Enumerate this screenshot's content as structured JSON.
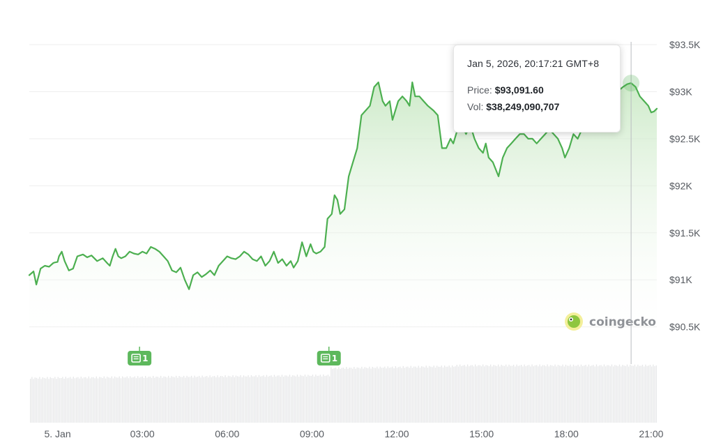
{
  "chart_data": {
    "type": "area",
    "watermark": "coingecko",
    "y_axis": {
      "position": "right",
      "ticks": [
        {
          "value": 90500,
          "label": "$90.5K"
        },
        {
          "value": 91000,
          "label": "$91K"
        },
        {
          "value": 91500,
          "label": "$91.5K"
        },
        {
          "value": 92000,
          "label": "$92K"
        },
        {
          "value": 92500,
          "label": "$92.5K"
        },
        {
          "value": 93000,
          "label": "$93K"
        },
        {
          "value": 93500,
          "label": "$93.5K"
        }
      ],
      "range": [
        90290,
        93530
      ]
    },
    "x_axis": {
      "range_hours": [
        -1.0,
        21.2
      ],
      "ticks": [
        {
          "hour": 0,
          "label": "5. Jan"
        },
        {
          "hour": 3,
          "label": "03:00"
        },
        {
          "hour": 6,
          "label": "06:00"
        },
        {
          "hour": 9,
          "label": "09:00"
        },
        {
          "hour": 12,
          "label": "12:00"
        },
        {
          "hour": 15,
          "label": "15:00"
        },
        {
          "hour": 18,
          "label": "18:00"
        },
        {
          "hour": 21,
          "label": "21:00"
        }
      ]
    },
    "grid": true,
    "series": [
      {
        "points": [
          [
            -1.0,
            91050
          ],
          [
            -0.85,
            91090
          ],
          [
            -0.75,
            90950
          ],
          [
            -0.6,
            91120
          ],
          [
            -0.45,
            91150
          ],
          [
            -0.3,
            91140
          ],
          [
            -0.15,
            91180
          ],
          [
            0.0,
            91190
          ],
          [
            -0.1,
            91185
          ],
          [
            0.05,
            91250
          ],
          [
            0.15,
            91300
          ],
          [
            0.25,
            91200
          ],
          [
            0.4,
            91100
          ],
          [
            0.55,
            91120
          ],
          [
            0.7,
            91250
          ],
          [
            0.9,
            91270
          ],
          [
            1.05,
            91240
          ],
          [
            1.2,
            91260
          ],
          [
            1.4,
            91200
          ],
          [
            1.6,
            91230
          ],
          [
            1.75,
            91180
          ],
          [
            1.85,
            91150
          ],
          [
            1.95,
            91250
          ],
          [
            2.05,
            91330
          ],
          [
            2.15,
            91250
          ],
          [
            2.25,
            91230
          ],
          [
            2.4,
            91250
          ],
          [
            2.55,
            91300
          ],
          [
            2.7,
            91280
          ],
          [
            2.85,
            91270
          ],
          [
            3.0,
            91300
          ],
          [
            3.15,
            91280
          ],
          [
            3.3,
            91350
          ],
          [
            3.45,
            91330
          ],
          [
            3.6,
            91300
          ],
          [
            3.75,
            91250
          ],
          [
            3.9,
            91200
          ],
          [
            4.05,
            91100
          ],
          [
            4.2,
            91080
          ],
          [
            4.35,
            91130
          ],
          [
            4.5,
            91000
          ],
          [
            4.65,
            90900
          ],
          [
            4.8,
            91050
          ],
          [
            4.95,
            91080
          ],
          [
            5.1,
            91030
          ],
          [
            5.25,
            91060
          ],
          [
            5.4,
            91100
          ],
          [
            5.55,
            91050
          ],
          [
            5.7,
            91150
          ],
          [
            5.85,
            91200
          ],
          [
            6.0,
            91250
          ],
          [
            6.15,
            91230
          ],
          [
            6.3,
            91220
          ],
          [
            6.45,
            91250
          ],
          [
            6.6,
            91300
          ],
          [
            6.75,
            91270
          ],
          [
            6.9,
            91220
          ],
          [
            7.05,
            91200
          ],
          [
            7.2,
            91250
          ],
          [
            7.35,
            91150
          ],
          [
            7.5,
            91200
          ],
          [
            7.65,
            91300
          ],
          [
            7.8,
            91180
          ],
          [
            7.95,
            91220
          ],
          [
            8.1,
            91150
          ],
          [
            8.25,
            91200
          ],
          [
            8.35,
            91130
          ],
          [
            8.5,
            91200
          ],
          [
            8.65,
            91400
          ],
          [
            8.8,
            91250
          ],
          [
            8.95,
            91380
          ],
          [
            9.05,
            91300
          ],
          [
            9.15,
            91280
          ],
          [
            9.3,
            91300
          ],
          [
            9.45,
            91350
          ],
          [
            9.55,
            91650
          ],
          [
            9.7,
            91700
          ],
          [
            9.8,
            91900
          ],
          [
            9.9,
            91850
          ],
          [
            10.0,
            91700
          ],
          [
            10.15,
            91750
          ],
          [
            10.3,
            92100
          ],
          [
            10.45,
            92250
          ],
          [
            10.6,
            92400
          ],
          [
            10.75,
            92750
          ],
          [
            10.9,
            92800
          ],
          [
            11.05,
            92850
          ],
          [
            11.2,
            93050
          ],
          [
            11.35,
            93100
          ],
          [
            11.5,
            92900
          ],
          [
            11.6,
            92850
          ],
          [
            11.75,
            92900
          ],
          [
            11.85,
            92700
          ],
          [
            11.95,
            92800
          ],
          [
            12.05,
            92900
          ],
          [
            12.2,
            92950
          ],
          [
            12.35,
            92900
          ],
          [
            12.45,
            92850
          ],
          [
            12.55,
            93100
          ],
          [
            12.65,
            92950
          ],
          [
            12.8,
            92950
          ],
          [
            12.95,
            92900
          ],
          [
            13.1,
            92850
          ],
          [
            13.3,
            92800
          ],
          [
            13.45,
            92750
          ],
          [
            13.6,
            92400
          ],
          [
            13.75,
            92400
          ],
          [
            13.9,
            92500
          ],
          [
            14.0,
            92450
          ],
          [
            14.15,
            92600
          ],
          [
            14.3,
            92650
          ],
          [
            14.45,
            92550
          ],
          [
            14.6,
            92650
          ],
          [
            14.75,
            92500
          ],
          [
            14.9,
            92400
          ],
          [
            15.05,
            92350
          ],
          [
            15.15,
            92450
          ],
          [
            15.25,
            92300
          ],
          [
            15.4,
            92250
          ],
          [
            15.6,
            92100
          ],
          [
            15.75,
            92300
          ],
          [
            15.9,
            92400
          ],
          [
            16.05,
            92450
          ],
          [
            16.2,
            92500
          ],
          [
            16.35,
            92550
          ],
          [
            16.5,
            92550
          ],
          [
            16.65,
            92500
          ],
          [
            16.8,
            92500
          ],
          [
            16.95,
            92450
          ],
          [
            17.1,
            92500
          ],
          [
            17.25,
            92550
          ],
          [
            17.4,
            92600
          ],
          [
            17.55,
            92550
          ],
          [
            17.7,
            92500
          ],
          [
            17.85,
            92400
          ],
          [
            17.95,
            92300
          ],
          [
            18.1,
            92400
          ],
          [
            18.25,
            92550
          ],
          [
            18.4,
            92500
          ],
          [
            18.55,
            92600
          ],
          [
            18.7,
            92650
          ],
          [
            18.85,
            92750
          ],
          [
            19.0,
            92780
          ],
          [
            19.2,
            92850
          ],
          [
            19.4,
            92900
          ],
          [
            19.6,
            92950
          ],
          [
            19.8,
            93000
          ],
          [
            20.0,
            93050
          ],
          [
            20.15,
            93080
          ],
          [
            20.29,
            93091.6
          ],
          [
            20.45,
            93050
          ],
          [
            20.6,
            92950
          ],
          [
            20.75,
            92900
          ],
          [
            20.9,
            92850
          ],
          [
            21.0,
            92780
          ],
          [
            21.1,
            92790
          ],
          [
            21.2,
            92820
          ]
        ]
      }
    ],
    "volume_bars": true,
    "news_markers": [
      {
        "hour": 2.9,
        "label": "1"
      },
      {
        "hour": 9.6,
        "label": "1"
      }
    ],
    "tooltip": {
      "hour": 20.29,
      "price_value": 93091.6,
      "date": "Jan 5, 2026, 20:17:21 GMT+8",
      "price_label": "Price:",
      "price": "$93,091.60",
      "vol_label": "Vol:",
      "vol": "$38,249,090,707"
    },
    "colors": {
      "line": "#4caf50",
      "area_top": "#c8e8c3",
      "volume": "#e6e7e8",
      "news_badge": "#5db85c",
      "grid": "#eeeeee"
    }
  }
}
